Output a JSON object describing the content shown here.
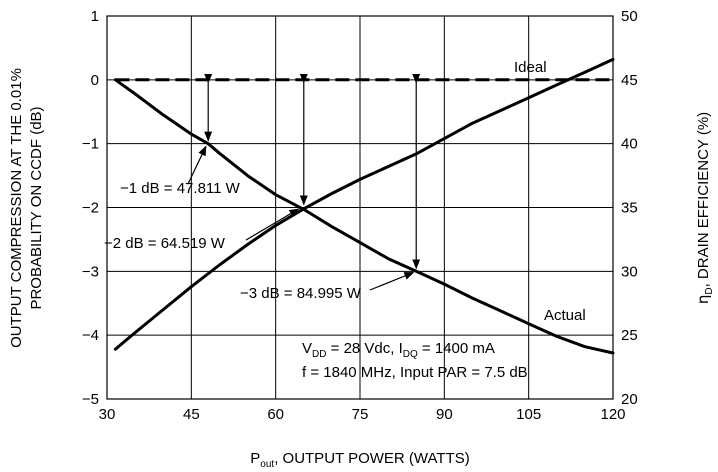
{
  "chart_data": {
    "type": "line",
    "x_axis": {
      "label_main": "P",
      "label_sub": "out",
      "label_rest": ", OUTPUT POWER (WATTS)",
      "range": [
        30,
        120
      ],
      "ticks": [
        30,
        45,
        60,
        75,
        90,
        105,
        120
      ],
      "tick_labels": [
        "30",
        "45",
        "60",
        "75",
        "90",
        "105",
        "120"
      ],
      "grid": true
    },
    "y_left": {
      "label_line1": "OUTPUT COMPRESSION AT THE 0.01%",
      "label_line2": "PROBABILITY ON CCDF (dB)",
      "range": [
        -5,
        1
      ],
      "ticks": [
        1,
        0,
        -1,
        -2,
        -3,
        -4,
        -5
      ],
      "tick_labels": [
        "1",
        "0",
        "−1",
        "−2",
        "−3",
        "−4",
        "−5"
      ]
    },
    "y_right": {
      "label_greek": "η",
      "label_sub": "D",
      "label_rest": ", DRAIN EFFICIENCY (%)",
      "range": [
        20,
        50
      ],
      "ticks": [
        50,
        45,
        40,
        35,
        30,
        25,
        20
      ],
      "tick_labels": [
        "50",
        "45",
        "40",
        "35",
        "30",
        "25",
        "20"
      ]
    },
    "series": [
      {
        "name": "Ideal",
        "axis": "left",
        "style": "dashed",
        "x": [
          31.5,
          120
        ],
        "y": [
          0,
          0
        ]
      },
      {
        "name": "Actual",
        "axis": "left",
        "style": "solid",
        "x": [
          31.5,
          35,
          40,
          45,
          48,
          50,
          55,
          60,
          65,
          70,
          75,
          80,
          85,
          90,
          95,
          100,
          105,
          110,
          115,
          120
        ],
        "y": [
          0,
          -0.22,
          -0.55,
          -0.85,
          -1.0,
          -1.15,
          -1.5,
          -1.8,
          -2.03,
          -2.3,
          -2.55,
          -2.8,
          -3.0,
          -3.2,
          -3.42,
          -3.62,
          -3.82,
          -4.02,
          -4.18,
          -4.28
        ]
      },
      {
        "axis": "right",
        "style": "solid",
        "x": [
          31.5,
          35,
          40,
          45,
          50,
          55,
          60,
          65,
          70,
          75,
          80,
          85,
          90,
          95,
          100,
          105,
          110,
          115,
          120
        ],
        "y": [
          23.9,
          25.2,
          27.0,
          28.8,
          30.5,
          32.1,
          33.6,
          34.9,
          36.1,
          37.2,
          38.2,
          39.2,
          40.4,
          41.6,
          42.6,
          43.6,
          44.6,
          45.6,
          46.6
        ]
      }
    ],
    "annotations": [
      {
        "text": "Ideal"
      },
      {
        "text": "Actual"
      },
      {
        "text": "−1 dB = 47.811 W",
        "x": 47.811,
        "y": -1
      },
      {
        "text": "−2 dB = 64.519 W",
        "x": 64.519,
        "y": -2
      },
      {
        "text": "−3 dB = 84.995 W",
        "x": 84.995,
        "y": -3
      },
      {
        "text_vdd": "V",
        "sub_dd": "DD",
        "text_vdd_rest": " = 28 Vdc, I",
        "sub_dq": "DQ",
        "text_idq_rest": " = 1400 mA"
      },
      {
        "text": "f = 1840 MHz, Input PAR = 7.5 dB"
      }
    ],
    "vertical_arrows_at": [
      {
        "x": 48,
        "y_from": 0,
        "y_to": -1
      },
      {
        "x": 65,
        "y_from": 0,
        "y_to": -2
      },
      {
        "x": 85,
        "y_from": 0,
        "y_to": -3
      }
    ]
  }
}
